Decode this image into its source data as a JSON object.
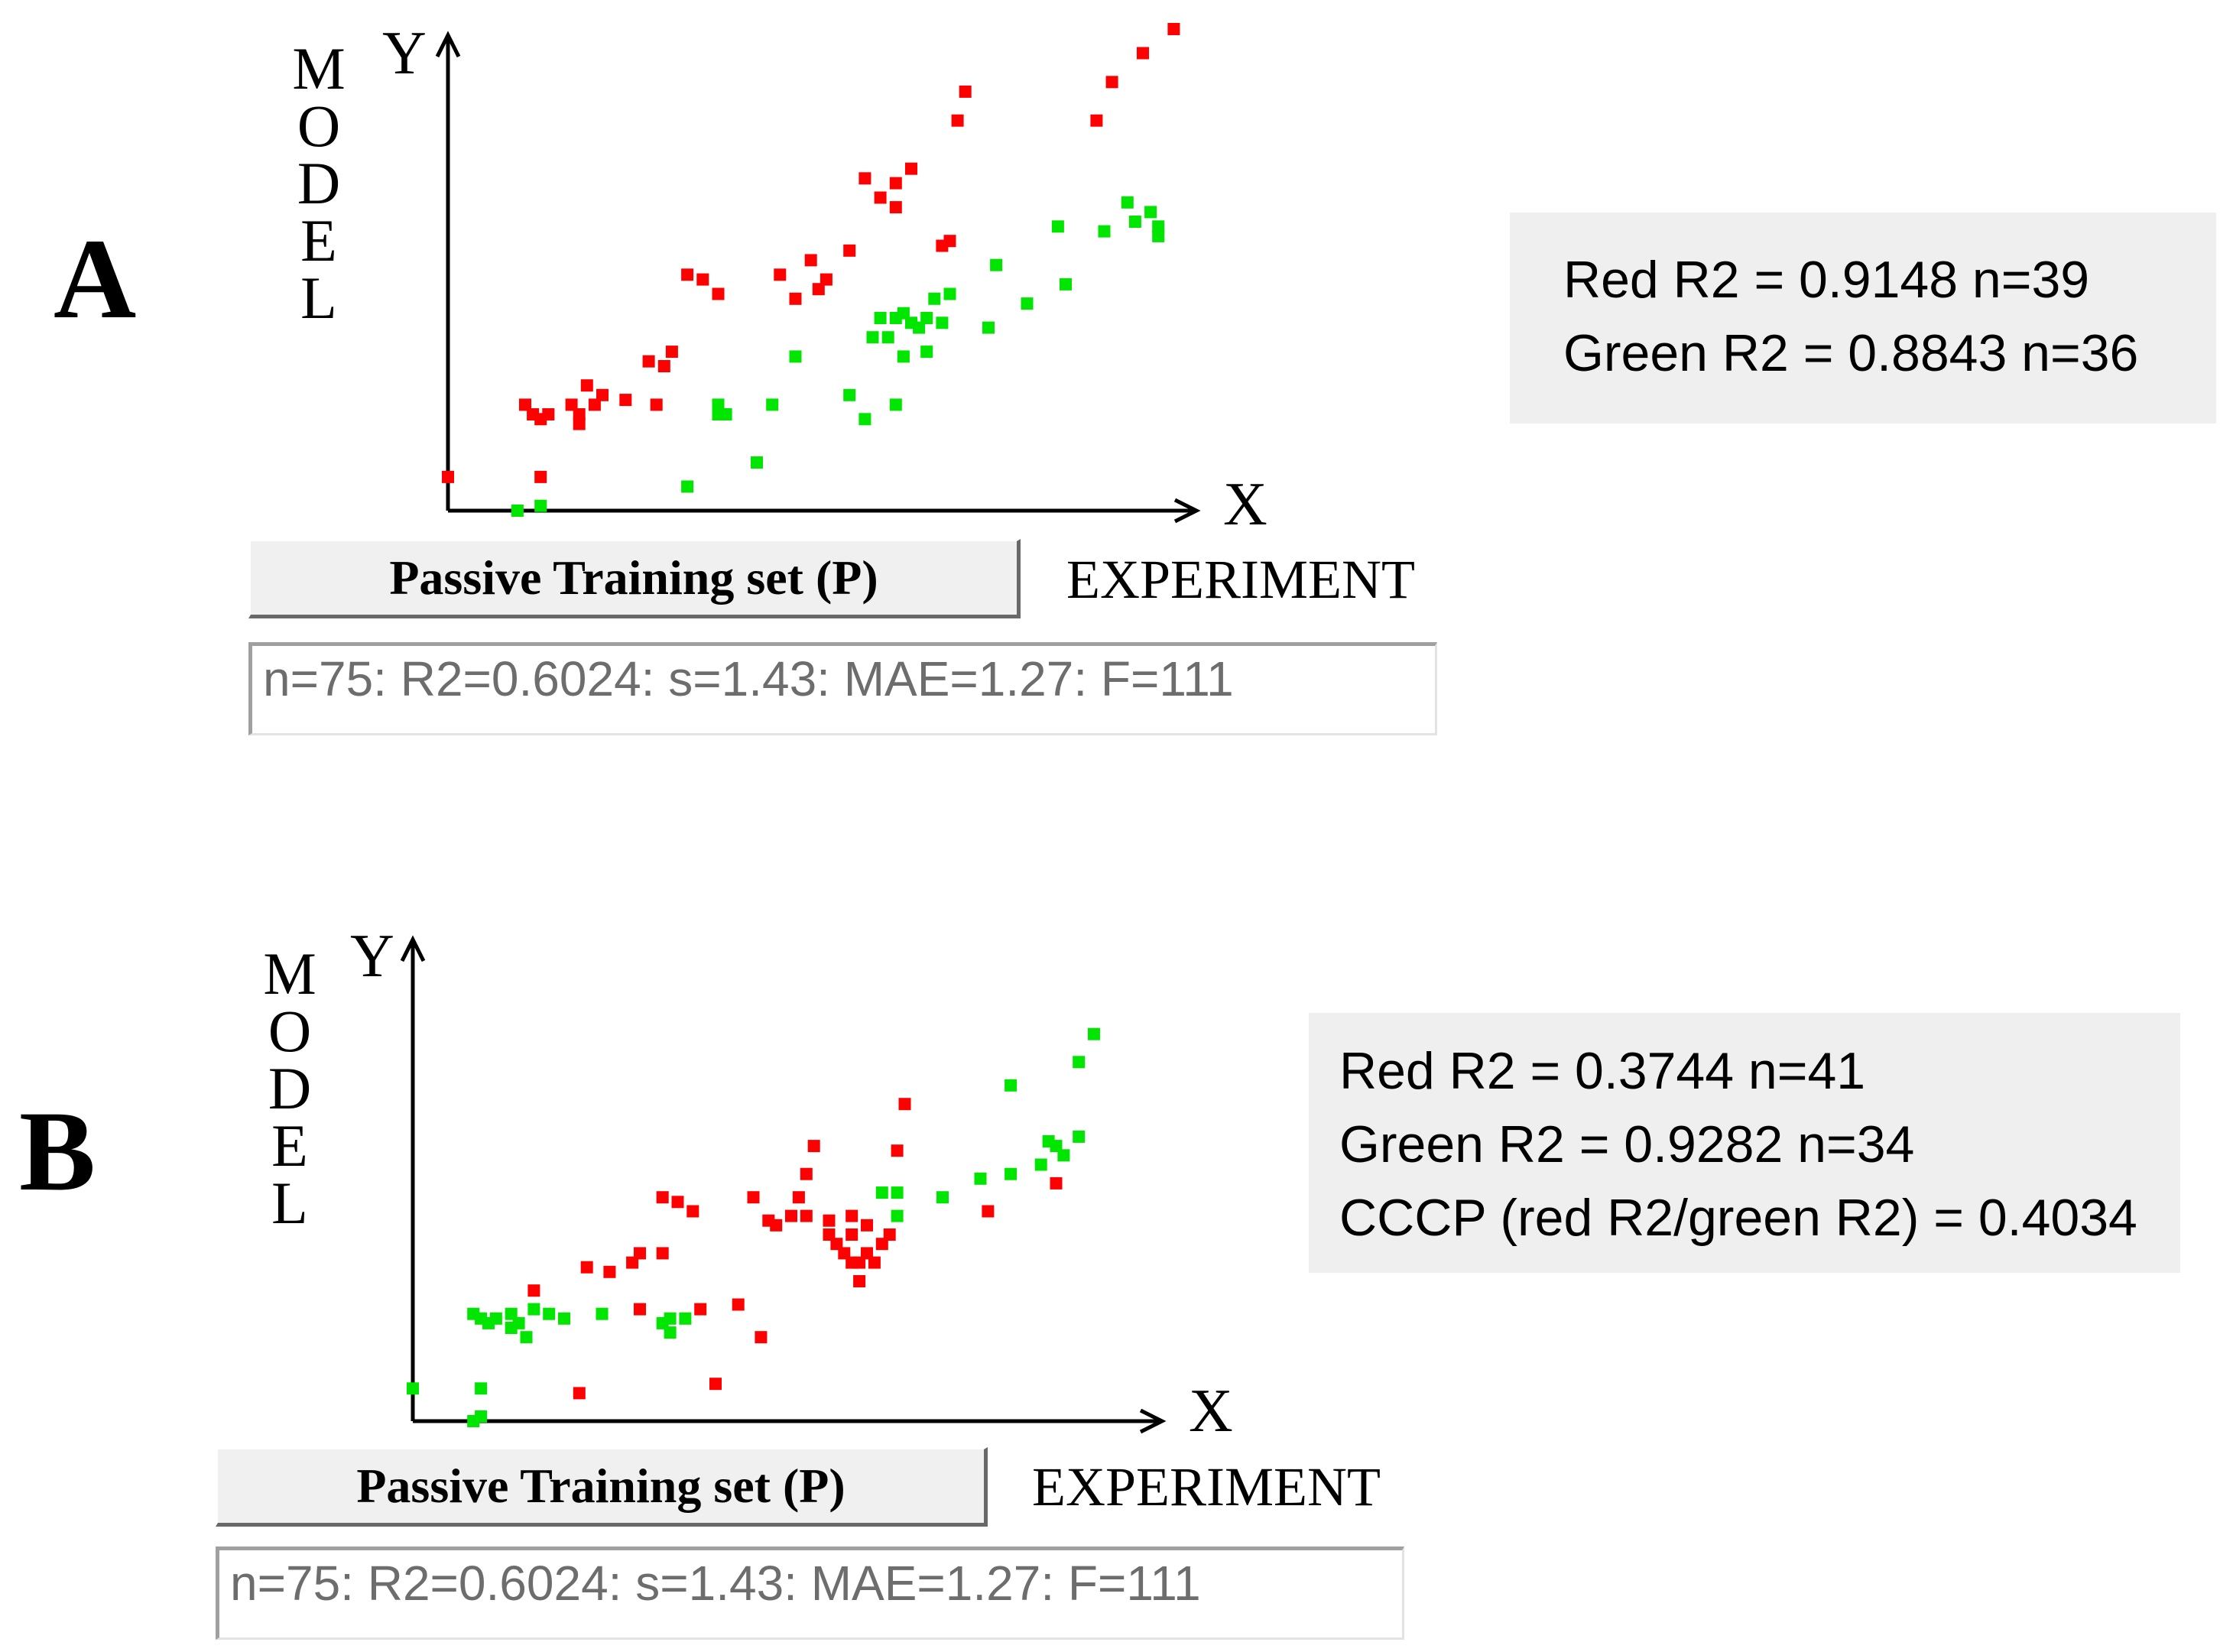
{
  "colors": {
    "red": "#ff0000",
    "green": "#00e600",
    "axis": "#000000"
  },
  "chart_data": [
    {
      "type": "scatter",
      "panel_label": "A",
      "ylabel": "MODEL",
      "xlabel": "EXPERIMENT",
      "x_axis_letter": "X",
      "y_axis_letter": "Y",
      "xlim": [
        0,
        100
      ],
      "ylim": [
        0,
        100
      ],
      "button_label": "Passive Training set (P)",
      "stats_text": "n=75: R2=0.6024: s=1.43: MAE=1.27: F=111",
      "info_lines": [
        "Red R2 = 0.9148 n=39",
        "Green R2 = 0.8843 n=36"
      ],
      "series": [
        {
          "name": "Red",
          "color": "#ff0000",
          "points": [
            [
              0,
              7
            ],
            [
              10,
              22
            ],
            [
              11,
              20
            ],
            [
              12,
              19
            ],
            [
              13,
              20
            ],
            [
              12,
              7
            ],
            [
              16,
              22
            ],
            [
              17,
              20
            ],
            [
              17,
              18
            ],
            [
              18,
              26
            ],
            [
              19,
              22
            ],
            [
              20,
              24
            ],
            [
              23,
              23
            ],
            [
              26,
              31
            ],
            [
              27,
              22
            ],
            [
              28,
              30
            ],
            [
              29,
              33
            ],
            [
              31,
              49
            ],
            [
              33,
              48
            ],
            [
              35,
              45
            ],
            [
              43,
              49
            ],
            [
              45,
              44
            ],
            [
              47,
              52
            ],
            [
              48,
              46
            ],
            [
              49,
              48
            ],
            [
              52,
              54
            ],
            [
              54,
              69
            ],
            [
              56,
              65
            ],
            [
              58,
              68
            ],
            [
              58,
              63
            ],
            [
              60,
              71
            ],
            [
              64,
              55
            ],
            [
              65,
              56
            ],
            [
              66,
              81
            ],
            [
              67,
              87
            ],
            [
              84,
              81
            ],
            [
              90,
              95
            ],
            [
              94,
              100
            ],
            [
              86,
              89
            ]
          ]
        },
        {
          "name": "Green",
          "color": "#00e600",
          "points": [
            [
              9,
              0
            ],
            [
              12,
              1
            ],
            [
              31,
              5
            ],
            [
              35,
              20
            ],
            [
              35,
              22
            ],
            [
              36,
              20
            ],
            [
              40,
              10
            ],
            [
              42,
              22
            ],
            [
              45,
              32
            ],
            [
              52,
              24
            ],
            [
              54,
              19
            ],
            [
              55,
              36
            ],
            [
              56,
              40
            ],
            [
              57,
              36
            ],
            [
              58,
              40
            ],
            [
              59,
              41
            ],
            [
              58,
              22
            ],
            [
              59,
              32
            ],
            [
              60,
              39
            ],
            [
              61,
              38
            ],
            [
              62,
              33
            ],
            [
              62,
              40
            ],
            [
              63,
              44
            ],
            [
              64,
              39
            ],
            [
              65,
              45
            ],
            [
              70,
              38
            ],
            [
              71,
              51
            ],
            [
              75,
              43
            ],
            [
              79,
              59
            ],
            [
              80,
              47
            ],
            [
              85,
              58
            ],
            [
              88,
              64
            ],
            [
              89,
              60
            ],
            [
              91,
              62
            ],
            [
              92,
              59
            ],
            [
              92,
              57
            ]
          ]
        }
      ]
    },
    {
      "type": "scatter",
      "panel_label": "B",
      "ylabel": "MODEL",
      "xlabel": "EXPERIMENT",
      "x_axis_letter": "X",
      "y_axis_letter": "Y",
      "xlim": [
        0,
        100
      ],
      "ylim": [
        0,
        100
      ],
      "button_label": "Passive Training set (P)",
      "stats_text": "n=75: R2=0.6024: s=1.43: MAE=1.27: F=111",
      "info_lines": [
        "Red R2 = 0.3744 n=41",
        "Green R2 = 0.9282 n=34",
        "CCCP (red R2/green R2) = 0.4034"
      ],
      "series": [
        {
          "name": "Red",
          "color": "#ff0000",
          "points": [
            [
              16,
              28
            ],
            [
              23,
              33
            ],
            [
              26,
              32
            ],
            [
              29,
              34
            ],
            [
              30,
              36
            ],
            [
              33,
              48
            ],
            [
              35,
              47
            ],
            [
              37,
              45
            ],
            [
              45,
              48
            ],
            [
              47,
              43
            ],
            [
              48,
              42
            ],
            [
              50,
              44
            ],
            [
              51,
              48
            ],
            [
              40,
              8
            ],
            [
              22,
              6
            ],
            [
              30,
              24
            ],
            [
              33,
              36
            ],
            [
              38,
              24
            ],
            [
              43,
              25
            ],
            [
              46,
              18
            ],
            [
              52,
              53
            ],
            [
              52,
              44
            ],
            [
              53,
              59
            ],
            [
              55,
              43
            ],
            [
              55,
              40
            ],
            [
              56,
              38
            ],
            [
              57,
              36
            ],
            [
              58,
              34
            ],
            [
              58,
              40
            ],
            [
              58,
              44
            ],
            [
              59,
              34
            ],
            [
              59,
              30
            ],
            [
              60,
              42
            ],
            [
              60,
              36
            ],
            [
              61,
              34
            ],
            [
              62,
              38
            ],
            [
              63,
              40
            ],
            [
              64,
              58
            ],
            [
              65,
              68
            ],
            [
              76,
              45
            ],
            [
              85,
              51
            ]
          ]
        },
        {
          "name": "Green",
          "color": "#00e600",
          "points": [
            [
              0,
              7
            ],
            [
              8,
              0
            ],
            [
              9,
              1
            ],
            [
              9,
              7
            ],
            [
              8,
              23
            ],
            [
              9,
              22
            ],
            [
              10,
              21
            ],
            [
              11,
              22
            ],
            [
              13,
              23
            ],
            [
              13,
              20
            ],
            [
              14,
              21
            ],
            [
              15,
              18
            ],
            [
              16,
              24
            ],
            [
              18,
              23
            ],
            [
              20,
              22
            ],
            [
              25,
              23
            ],
            [
              33,
              21
            ],
            [
              34,
              22
            ],
            [
              34,
              19
            ],
            [
              36,
              22
            ],
            [
              62,
              49
            ],
            [
              64,
              49
            ],
            [
              64,
              44
            ],
            [
              70,
              48
            ],
            [
              75,
              52
            ],
            [
              79,
              72
            ],
            [
              79,
              53
            ],
            [
              83,
              55
            ],
            [
              84,
              60
            ],
            [
              85,
              59
            ],
            [
              86,
              57
            ],
            [
              88,
              61
            ],
            [
              88,
              77
            ],
            [
              90,
              83
            ]
          ]
        }
      ]
    }
  ]
}
